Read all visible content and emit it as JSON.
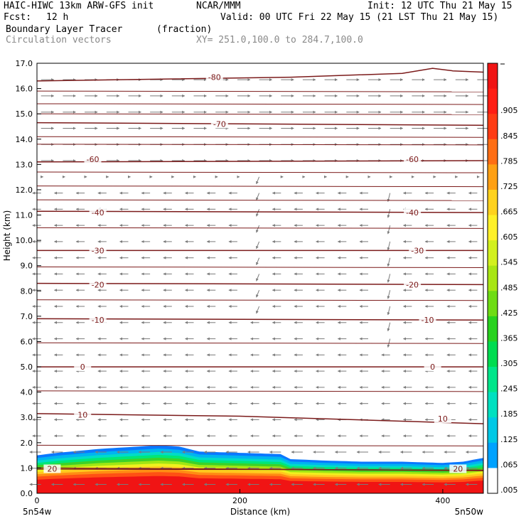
{
  "header": {
    "model": "HAIC-HIWC 13km ARW-GFS init",
    "org": "NCAR/MMM",
    "init": "Init: 12 UTC Thu 21 May 15",
    "fcst_label": "Fcst:",
    "fcst_value": "12 h",
    "valid": "Valid: 00 UTC Fri 22 May 15 (21 LST Thu 21 May 15)",
    "field": "Boundary Layer Tracer",
    "field_units": "(fraction)",
    "vectors": "Circulation vectors",
    "xy": "XY= 251.0,100.0 to 284.7,100.0"
  },
  "chart_data": {
    "type": "heatmap",
    "xlabel": "Distance (km)",
    "ylabel": "Height (km)",
    "xlim": [
      0,
      440
    ],
    "ylim": [
      0,
      17
    ],
    "x_ticks": [
      "0",
      "200",
      "400"
    ],
    "x_tick_values": [
      0,
      200,
      400
    ],
    "x_end_labels": [
      "5n54w",
      "5n50w"
    ],
    "y_ticks": [
      "0.0",
      "1.0",
      "2.0",
      "3.0",
      "4.0",
      "5.0",
      "6.0",
      "7.0",
      "8.0",
      "9.0",
      "10.0",
      "11.0",
      "12.0",
      "13.0",
      "14.0",
      "15.0",
      "16.0",
      "17.0"
    ],
    "colorbar": {
      "labels": [
        ".005",
        ".065",
        ".125",
        ".185",
        ".245",
        ".305",
        ".365",
        ".425",
        ".485",
        ".545",
        ".605",
        ".665",
        ".725",
        ".785",
        ".845",
        ".905"
      ],
      "colors": [
        "#ffffff",
        "#00a2ff",
        "#00c8e6",
        "#00e0c0",
        "#00e68a",
        "#00dc50",
        "#28d21e",
        "#6edc14",
        "#a8e614",
        "#d2f01e",
        "#fff028",
        "#ffd21e",
        "#ffa014",
        "#ff6e14",
        "#ff3c14",
        "#ff1e14",
        "#f01414"
      ]
    },
    "tracer_top_km": {
      "x_km": [
        0,
        20,
        60,
        100,
        120,
        140,
        160,
        200,
        240,
        250,
        280,
        320,
        360,
        400,
        420,
        440
      ],
      "top": [
        1.5,
        1.6,
        1.75,
        1.85,
        1.9,
        1.85,
        1.65,
        1.6,
        1.55,
        1.35,
        1.3,
        1.25,
        1.25,
        1.2,
        1.25,
        1.4
      ]
    },
    "contours": [
      {
        "label": "20",
        "label_pos": [
          "20",
          "20"
        ]
      },
      {
        "label": "10",
        "label_pos": [
          "10",
          "10"
        ]
      },
      {
        "label": "0",
        "label_pos": [
          "0",
          "0"
        ]
      },
      {
        "label": "-10",
        "label_pos": [
          "-10",
          "-10"
        ]
      },
      {
        "label": "-20",
        "label_pos": [
          "-20",
          "-20"
        ]
      },
      {
        "label": "-30",
        "label_pos": [
          "-30",
          "-30"
        ]
      },
      {
        "label": "-40",
        "label_pos": [
          "-40",
          "-40"
        ]
      },
      {
        "label": "-60",
        "label_pos": [
          "-60",
          "-60"
        ]
      },
      {
        "label": "-70",
        "label_pos": [
          "-70"
        ]
      },
      {
        "label": "-80",
        "label_pos": [
          "-80"
        ]
      }
    ],
    "contour_lines_km": [
      {
        "value": 20,
        "pts": [
          [
            0,
            1.0
          ],
          [
            440,
            0.9
          ]
        ],
        "labels_at": [
          [
            15,
            0.97
          ],
          [
            415,
            0.97
          ]
        ]
      },
      {
        "value": 10,
        "pts": [
          [
            0,
            3.15
          ],
          [
            200,
            3.05
          ],
          [
            440,
            2.75
          ]
        ],
        "labels_at": [
          [
            45,
            3.1
          ],
          [
            400,
            2.95
          ]
        ]
      },
      {
        "value": 0,
        "pts": [
          [
            0,
            5.0
          ],
          [
            440,
            5.0
          ]
        ],
        "labels_at": [
          [
            45,
            5.0
          ],
          [
            390,
            5.0
          ]
        ]
      },
      {
        "value": -10,
        "pts": [
          [
            0,
            6.9
          ],
          [
            440,
            6.85
          ]
        ],
        "labels_at": [
          [
            60,
            6.85
          ],
          [
            385,
            6.85
          ]
        ]
      },
      {
        "value": -20,
        "pts": [
          [
            0,
            8.3
          ],
          [
            440,
            8.25
          ]
        ],
        "labels_at": [
          [
            60,
            8.25
          ],
          [
            370,
            8.25
          ]
        ]
      },
      {
        "value": -30,
        "pts": [
          [
            0,
            9.6
          ],
          [
            440,
            9.6
          ]
        ],
        "labels_at": [
          [
            60,
            9.6
          ],
          [
            375,
            9.6
          ]
        ]
      },
      {
        "value": -40,
        "pts": [
          [
            0,
            11.15
          ],
          [
            440,
            11.1
          ]
        ],
        "labels_at": [
          [
            60,
            11.1
          ],
          [
            370,
            11.1
          ]
        ]
      },
      {
        "value": -60,
        "pts": [
          [
            0,
            13.1
          ],
          [
            440,
            13.15
          ]
        ],
        "labels_at": [
          [
            55,
            13.2
          ],
          [
            370,
            13.2
          ]
        ]
      },
      {
        "value": -70,
        "pts": [
          [
            0,
            14.65
          ],
          [
            440,
            14.55
          ]
        ],
        "labels_at": [
          [
            180,
            14.6
          ]
        ]
      },
      {
        "value": -80,
        "pts": [
          [
            0,
            16.3
          ],
          [
            250,
            16.45
          ],
          [
            360,
            16.6
          ],
          [
            390,
            16.8
          ],
          [
            410,
            16.7
          ],
          [
            440,
            16.65
          ]
        ],
        "labels_at": [
          [
            175,
            16.45
          ]
        ]
      }
    ],
    "extra_lines_km": [
      0.95,
      1.9,
      4.05,
      5.95,
      7.65,
      8.95,
      10.5,
      11.6,
      12.15,
      12.7,
      13.8,
      14.1,
      15.0,
      15.4,
      15.9
    ]
  }
}
